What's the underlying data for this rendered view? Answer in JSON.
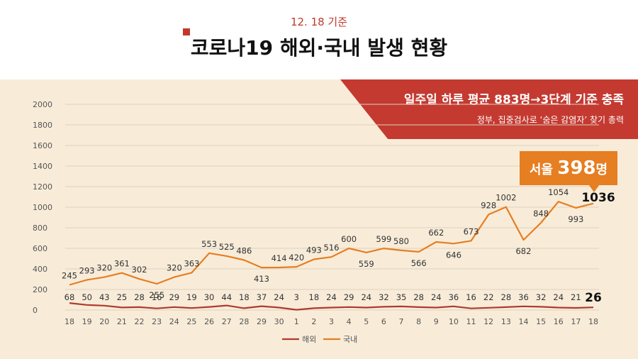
{
  "header": {
    "date": "12. 18 기준",
    "title": "코로나19 해외·국내 발생 현황"
  },
  "banner": {
    "main": "일주일 하루 평균 883명→3단계 기준 충족",
    "sub": "정부, 집중검사로 ‘숨은 감염자’ 찾기 총력"
  },
  "callout": {
    "prefix": "서울 ",
    "number": "398",
    "suffix": "명"
  },
  "colors": {
    "overseas": "#b03a2e",
    "domestic": "#e67e22",
    "banner": "#c43a31",
    "background": "#f8ecd9"
  },
  "chart_data": {
    "type": "line",
    "x": [
      "18",
      "19",
      "20",
      "21",
      "22",
      "23",
      "24",
      "25",
      "26",
      "27",
      "28",
      "29",
      "30",
      "1",
      "2",
      "3",
      "4",
      "5",
      "6",
      "7",
      "8",
      "9",
      "10",
      "11",
      "12",
      "13",
      "14",
      "15",
      "16",
      "17",
      "18"
    ],
    "yticks": [
      "0",
      "200",
      "400",
      "600",
      "800",
      "1000",
      "1200",
      "1400",
      "1600",
      "1800",
      "2000"
    ],
    "ylim": [
      0,
      2000
    ],
    "grid": true,
    "legend_position": "bottom",
    "series": [
      {
        "name": "해외",
        "values": [
          68,
          50,
          43,
          25,
          28,
          16,
          29,
          19,
          30,
          44,
          18,
          37,
          24,
          3,
          18,
          24,
          29,
          24,
          32,
          35,
          28,
          24,
          36,
          16,
          22,
          28,
          36,
          32,
          24,
          21,
          26
        ]
      },
      {
        "name": "국내",
        "values": [
          245,
          293,
          320,
          361,
          302,
          255,
          320,
          363,
          553,
          525,
          486,
          413,
          414,
          420,
          493,
          516,
          600,
          559,
          599,
          580,
          566,
          662,
          646,
          673,
          928,
          1002,
          682,
          848,
          1054,
          993,
          1036
        ]
      }
    ]
  }
}
